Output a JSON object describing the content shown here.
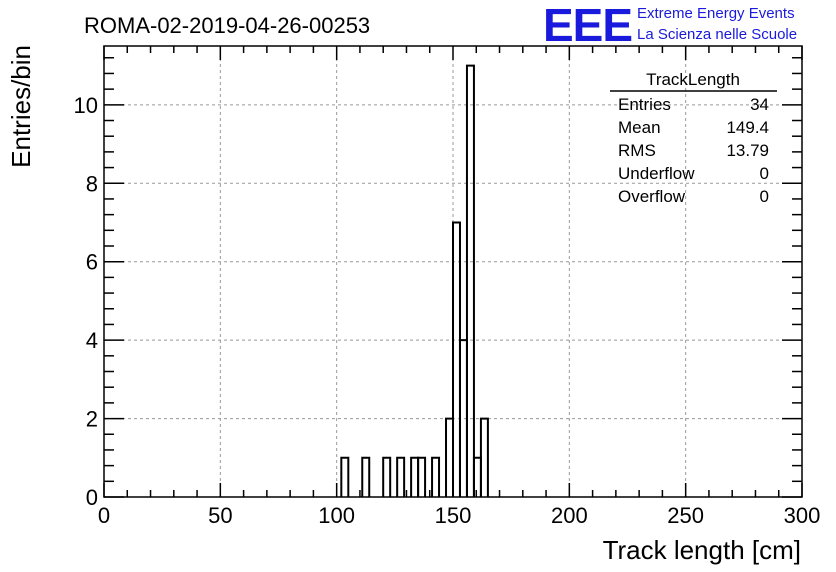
{
  "header": {
    "run_title": "ROMA-02-2019-04-26-00253",
    "logo_text": "EEE",
    "org_line1": "Extreme Energy Events",
    "org_line2": "La Scienza nelle Scuole"
  },
  "stats_box": {
    "title": "TrackLength",
    "rows": [
      {
        "label": "Entries",
        "value": "34"
      },
      {
        "label": "Mean",
        "value": "149.4"
      },
      {
        "label": "RMS",
        "value": "13.79"
      },
      {
        "label": "Underflow",
        "value": "0"
      },
      {
        "label": "Overflow",
        "value": "0"
      }
    ]
  },
  "chart_data": {
    "type": "bar",
    "subtype": "histogram",
    "xlabel": "Track length [cm]",
    "ylabel": "Entries/bin",
    "xlim": [
      0,
      300
    ],
    "ylim": [
      0,
      11.5
    ],
    "x_ticks": [
      0,
      50,
      100,
      150,
      200,
      250,
      300
    ],
    "y_ticks": [
      0,
      2,
      4,
      6,
      8,
      10
    ],
    "grid": true,
    "bin_width": 3,
    "bins": [
      {
        "x0": 102,
        "x1": 105,
        "count": 1
      },
      {
        "x0": 111,
        "x1": 114,
        "count": 1
      },
      {
        "x0": 120,
        "x1": 123,
        "count": 1
      },
      {
        "x0": 126,
        "x1": 129,
        "count": 1
      },
      {
        "x0": 132,
        "x1": 135,
        "count": 1
      },
      {
        "x0": 135,
        "x1": 138,
        "count": 1
      },
      {
        "x0": 141,
        "x1": 144,
        "count": 1
      },
      {
        "x0": 147,
        "x1": 150,
        "count": 2
      },
      {
        "x0": 150,
        "x1": 153,
        "count": 7
      },
      {
        "x0": 153,
        "x1": 156,
        "count": 4
      },
      {
        "x0": 156,
        "x1": 159,
        "count": 11
      },
      {
        "x0": 159,
        "x1": 162,
        "count": 1
      },
      {
        "x0": 162,
        "x1": 165,
        "count": 2
      }
    ]
  }
}
